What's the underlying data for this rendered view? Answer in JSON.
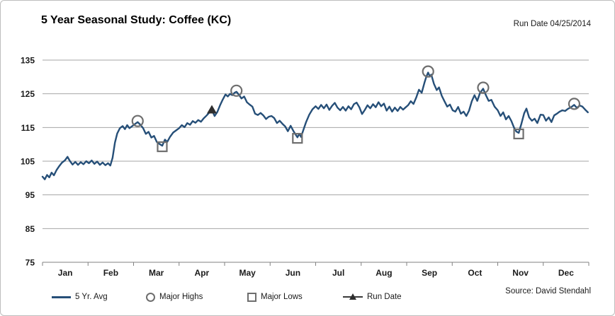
{
  "header": {
    "title": "5 Year Seasonal Study: Coffee (KC)",
    "run_date_label": "Run Date 04/25/2014"
  },
  "footer": {
    "source_label": "Source: David Stendahl"
  },
  "legend": [
    {
      "label": "5 Yr. Avg",
      "marker": "line"
    },
    {
      "label": "Major Highs",
      "marker": "circle"
    },
    {
      "label": "Major Lows",
      "marker": "square"
    },
    {
      "label": "Run Date",
      "marker": "triangle"
    }
  ],
  "colors": {
    "line": "#264F78",
    "marker_outline": "#6e6e6e",
    "run_date_marker": "#2e2e2e",
    "gridline": "#a6a6a6",
    "axis": "#808080",
    "tick_text": "#1a1a1a"
  },
  "chart_data": {
    "type": "line",
    "title": "5 Year Seasonal Study: Coffee (KC)",
    "x_categories": [
      "Jan",
      "Feb",
      "Mar",
      "Apr",
      "May",
      "Jun",
      "Jul",
      "Aug",
      "Sep",
      "Oct",
      "Nov",
      "Dec"
    ],
    "x_unit": "month_fraction_0_to_12",
    "y_ticks": [
      75,
      85,
      95,
      105,
      115,
      125,
      135
    ],
    "ylim": [
      75,
      135
    ],
    "grid": "horizontal",
    "legend_position": "bottom",
    "series": [
      {
        "name": "5 Yr. Avg",
        "points": [
          [
            0.0,
            100.4
          ],
          [
            0.05,
            99.6
          ],
          [
            0.1,
            100.9
          ],
          [
            0.15,
            100.2
          ],
          [
            0.2,
            101.6
          ],
          [
            0.25,
            100.8
          ],
          [
            0.31,
            102.4
          ],
          [
            0.37,
            103.6
          ],
          [
            0.43,
            104.6
          ],
          [
            0.49,
            105.2
          ],
          [
            0.55,
            106.3
          ],
          [
            0.6,
            105.1
          ],
          [
            0.66,
            104.0
          ],
          [
            0.72,
            104.8
          ],
          [
            0.78,
            103.9
          ],
          [
            0.84,
            104.7
          ],
          [
            0.9,
            104.1
          ],
          [
            0.96,
            105.0
          ],
          [
            1.02,
            104.4
          ],
          [
            1.08,
            105.2
          ],
          [
            1.14,
            104.2
          ],
          [
            1.2,
            104.9
          ],
          [
            1.26,
            103.9
          ],
          [
            1.32,
            104.6
          ],
          [
            1.38,
            103.8
          ],
          [
            1.44,
            104.4
          ],
          [
            1.49,
            103.7
          ],
          [
            1.54,
            106.0
          ],
          [
            1.59,
            110.5
          ],
          [
            1.64,
            113.2
          ],
          [
            1.7,
            114.8
          ],
          [
            1.76,
            115.4
          ],
          [
            1.81,
            114.5
          ],
          [
            1.86,
            115.7
          ],
          [
            1.91,
            114.8
          ],
          [
            1.96,
            115.3
          ],
          [
            2.02,
            115.9
          ],
          [
            2.09,
            116.6
          ],
          [
            2.15,
            115.8
          ],
          [
            2.21,
            114.8
          ],
          [
            2.27,
            113.1
          ],
          [
            2.33,
            113.7
          ],
          [
            2.39,
            112.0
          ],
          [
            2.45,
            112.5
          ],
          [
            2.51,
            110.7
          ],
          [
            2.57,
            110.1
          ],
          [
            2.63,
            109.6
          ],
          [
            2.69,
            111.4
          ],
          [
            2.74,
            110.7
          ],
          [
            2.8,
            112.2
          ],
          [
            2.87,
            113.5
          ],
          [
            2.93,
            114.1
          ],
          [
            3.0,
            114.8
          ],
          [
            3.06,
            115.7
          ],
          [
            3.12,
            115.1
          ],
          [
            3.18,
            116.3
          ],
          [
            3.24,
            115.8
          ],
          [
            3.3,
            116.9
          ],
          [
            3.36,
            116.4
          ],
          [
            3.42,
            117.2
          ],
          [
            3.48,
            116.7
          ],
          [
            3.54,
            117.7
          ],
          [
            3.6,
            118.5
          ],
          [
            3.66,
            119.4
          ],
          [
            3.72,
            120.2
          ],
          [
            3.78,
            118.4
          ],
          [
            3.84,
            119.6
          ],
          [
            3.9,
            121.6
          ],
          [
            3.96,
            123.3
          ],
          [
            4.02,
            124.8
          ],
          [
            4.07,
            124.2
          ],
          [
            4.12,
            125.0
          ],
          [
            4.17,
            124.6
          ],
          [
            4.22,
            125.3
          ],
          [
            4.26,
            125.6
          ],
          [
            4.31,
            124.8
          ],
          [
            4.37,
            123.6
          ],
          [
            4.43,
            124.2
          ],
          [
            4.49,
            122.5
          ],
          [
            4.55,
            121.8
          ],
          [
            4.61,
            121.2
          ],
          [
            4.67,
            119.1
          ],
          [
            4.73,
            118.7
          ],
          [
            4.79,
            119.3
          ],
          [
            4.85,
            118.6
          ],
          [
            4.91,
            117.5
          ],
          [
            4.97,
            118.2
          ],
          [
            5.03,
            118.4
          ],
          [
            5.09,
            117.8
          ],
          [
            5.15,
            116.3
          ],
          [
            5.21,
            117.0
          ],
          [
            5.27,
            116.1
          ],
          [
            5.33,
            115.3
          ],
          [
            5.39,
            113.9
          ],
          [
            5.45,
            115.5
          ],
          [
            5.51,
            114.0
          ],
          [
            5.56,
            112.9
          ],
          [
            5.6,
            112.1
          ],
          [
            5.64,
            113.1
          ],
          [
            5.68,
            112.2
          ],
          [
            5.73,
            114.3
          ],
          [
            5.79,
            116.6
          ],
          [
            5.86,
            118.8
          ],
          [
            5.93,
            120.4
          ],
          [
            6.0,
            121.3
          ],
          [
            6.06,
            120.5
          ],
          [
            6.12,
            121.7
          ],
          [
            6.18,
            120.7
          ],
          [
            6.24,
            121.8
          ],
          [
            6.3,
            120.2
          ],
          [
            6.36,
            121.4
          ],
          [
            6.42,
            122.3
          ],
          [
            6.48,
            120.9
          ],
          [
            6.54,
            120.1
          ],
          [
            6.6,
            121.1
          ],
          [
            6.66,
            120.0
          ],
          [
            6.72,
            121.3
          ],
          [
            6.78,
            120.4
          ],
          [
            6.84,
            121.9
          ],
          [
            6.9,
            122.4
          ],
          [
            6.96,
            121.0
          ],
          [
            7.02,
            119.0
          ],
          [
            7.08,
            120.2
          ],
          [
            7.14,
            121.6
          ],
          [
            7.2,
            120.7
          ],
          [
            7.26,
            121.9
          ],
          [
            7.32,
            121.0
          ],
          [
            7.38,
            122.5
          ],
          [
            7.44,
            121.3
          ],
          [
            7.5,
            122.1
          ],
          [
            7.56,
            120.0
          ],
          [
            7.62,
            121.2
          ],
          [
            7.68,
            119.7
          ],
          [
            7.74,
            120.9
          ],
          [
            7.8,
            119.9
          ],
          [
            7.86,
            121.1
          ],
          [
            7.92,
            120.3
          ],
          [
            7.97,
            120.9
          ],
          [
            8.03,
            121.6
          ],
          [
            8.09,
            122.8
          ],
          [
            8.15,
            122.0
          ],
          [
            8.21,
            123.9
          ],
          [
            8.27,
            126.2
          ],
          [
            8.33,
            125.3
          ],
          [
            8.39,
            128.3
          ],
          [
            8.43,
            130.0
          ],
          [
            8.47,
            131.3
          ],
          [
            8.51,
            130.1
          ],
          [
            8.54,
            130.7
          ],
          [
            8.6,
            127.9
          ],
          [
            8.66,
            126.1
          ],
          [
            8.71,
            126.9
          ],
          [
            8.77,
            124.4
          ],
          [
            8.83,
            122.8
          ],
          [
            8.89,
            121.2
          ],
          [
            8.95,
            121.8
          ],
          [
            9.01,
            120.1
          ],
          [
            9.07,
            119.7
          ],
          [
            9.13,
            121.1
          ],
          [
            9.19,
            119.1
          ],
          [
            9.25,
            119.7
          ],
          [
            9.31,
            118.4
          ],
          [
            9.37,
            120.0
          ],
          [
            9.43,
            122.8
          ],
          [
            9.49,
            124.6
          ],
          [
            9.55,
            122.9
          ],
          [
            9.61,
            125.2
          ],
          [
            9.68,
            126.5
          ],
          [
            9.74,
            124.6
          ],
          [
            9.8,
            122.9
          ],
          [
            9.86,
            123.2
          ],
          [
            9.93,
            121.2
          ],
          [
            10.0,
            120.1
          ],
          [
            10.06,
            118.4
          ],
          [
            10.12,
            119.5
          ],
          [
            10.18,
            117.4
          ],
          [
            10.24,
            118.4
          ],
          [
            10.3,
            116.9
          ],
          [
            10.36,
            114.9
          ],
          [
            10.41,
            113.8
          ],
          [
            10.46,
            113.4
          ],
          [
            10.52,
            116.1
          ],
          [
            10.58,
            119.2
          ],
          [
            10.63,
            120.6
          ],
          [
            10.69,
            118.0
          ],
          [
            10.75,
            117.0
          ],
          [
            10.81,
            117.6
          ],
          [
            10.87,
            116.3
          ],
          [
            10.94,
            118.8
          ],
          [
            11.0,
            118.7
          ],
          [
            11.06,
            117.0
          ],
          [
            11.12,
            118.0
          ],
          [
            11.18,
            116.6
          ],
          [
            11.24,
            118.6
          ],
          [
            11.3,
            119.1
          ],
          [
            11.36,
            119.7
          ],
          [
            11.42,
            120.1
          ],
          [
            11.48,
            119.9
          ],
          [
            11.54,
            120.5
          ],
          [
            11.61,
            121.0
          ],
          [
            11.68,
            121.7
          ],
          [
            11.74,
            120.8
          ],
          [
            11.8,
            121.5
          ],
          [
            11.86,
            121.2
          ],
          [
            11.92,
            120.3
          ],
          [
            11.98,
            119.5
          ]
        ]
      }
    ],
    "major_highs": [
      [
        2.09,
        116.6
      ],
      [
        4.26,
        125.6
      ],
      [
        8.47,
        131.3
      ],
      [
        9.68,
        126.5
      ],
      [
        11.68,
        121.7
      ]
    ],
    "major_lows": [
      [
        2.63,
        109.6
      ],
      [
        5.6,
        112.1
      ],
      [
        10.46,
        113.4
      ]
    ],
    "run_date_point": [
      3.72,
      120.2
    ]
  }
}
